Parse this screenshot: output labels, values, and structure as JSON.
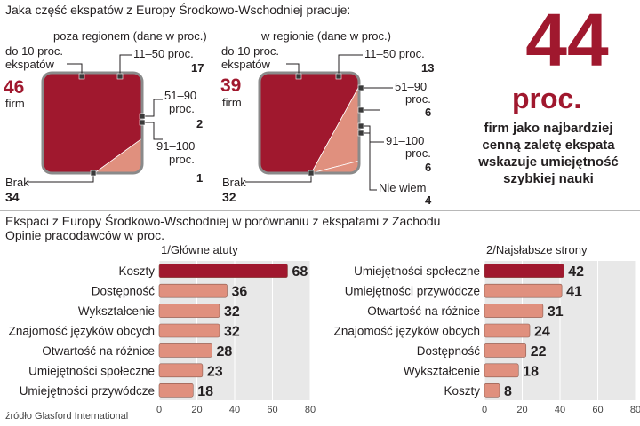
{
  "colors": {
    "dark_red": "#a0182e",
    "salmon": "#e0907e",
    "panel": "#e8e8e8",
    "border": "#8a8a8a",
    "text": "#231f20"
  },
  "top": {
    "question": "Jaka część ekspatów z Europy Środkowo-Wschodniej pracuje:",
    "firm_label": "firm",
    "labels": {
      "do10": "do 10 proc.",
      "do10_b": "ekspatów",
      "p11_50": "11–50 proc.",
      "p51_90_a": "51–90",
      "p51_90_b": "proc.",
      "p91_100_a": "91–100",
      "p91_100_b": "proc.",
      "brak": "Brak",
      "nie_wiem": "Nie wiem"
    },
    "outside": {
      "title": "poza regionem (dane w proc.)",
      "do10": "46",
      "p11_50": "17",
      "p51_90": "2",
      "p91_100": "1",
      "brak": "34"
    },
    "inside": {
      "title": "w regionie (dane w proc.)",
      "do10": "39",
      "p11_50": "13",
      "p51_90": "6",
      "p91_100": "6",
      "brak": "32",
      "nie_wiem": "4"
    }
  },
  "stat": {
    "big": "44",
    "unit": "proc.",
    "desc": [
      "firm jako najbardziej",
      "cenną zaletę ekspata",
      "wskazuje umiejętność",
      "szybkiej nauki"
    ]
  },
  "subtitle": {
    "line1": "Ekspaci z Europy Środkowo-Wschodniej w porównaniu z ekspatami z Zachodu",
    "line2": "Opinie pracodawców w proc."
  },
  "source": "źródło Glasford International",
  "chart_data": [
    {
      "type": "pie",
      "title": "poza regionem (dane w proc.)",
      "categories": [
        "do 10 proc. ekspatów",
        "11–50 proc.",
        "51–90 proc.",
        "91–100 proc.",
        "Brak"
      ],
      "values": [
        46,
        17,
        2,
        1,
        34
      ]
    },
    {
      "type": "pie",
      "title": "w regionie (dane w proc.)",
      "categories": [
        "do 10 proc. ekspatów",
        "11–50 proc.",
        "51–90 proc.",
        "91–100 proc.",
        "Nie wiem",
        "Brak"
      ],
      "values": [
        39,
        13,
        6,
        6,
        4,
        32
      ]
    },
    {
      "type": "bar",
      "title": "1/Główne atuty",
      "categories": [
        "Koszty",
        "Dostępność",
        "Wykształcenie",
        "Znajomość języków obcych",
        "Otwartość na różnice",
        "Umiejętności społeczne",
        "Umiejętności przywódcze"
      ],
      "values": [
        68,
        36,
        32,
        32,
        28,
        23,
        18
      ],
      "xlim": [
        0,
        80
      ],
      "ticks": [
        "0",
        "20",
        "40",
        "60",
        "80"
      ]
    },
    {
      "type": "bar",
      "title": "2/Najsłabsze strony",
      "categories": [
        "Umiejętności społeczne",
        "Umiejętności przywódcze",
        "Otwartość na różnice",
        "Znajomość języków obcych",
        "Dostępność",
        "Wykształcenie",
        "Koszty"
      ],
      "values": [
        42,
        41,
        31,
        24,
        22,
        18,
        8
      ],
      "xlim": [
        0,
        80
      ],
      "ticks": [
        "0",
        "20",
        "40",
        "60",
        "80"
      ]
    }
  ]
}
